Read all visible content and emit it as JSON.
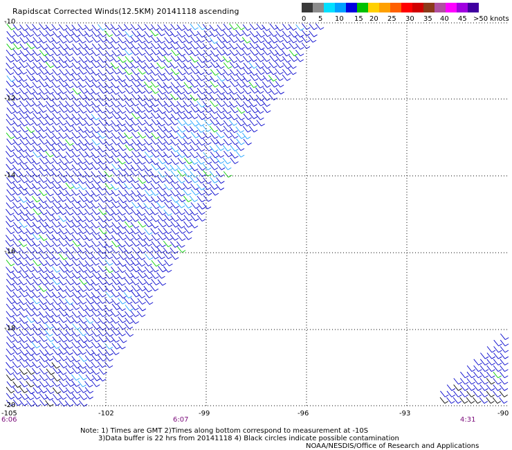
{
  "title": "Rapidscat Corrected Winds(12.5KM) 20141118 ascending",
  "colorbar": {
    "labels": [
      "0",
      "5",
      "10",
      "15",
      "20",
      "25",
      "30",
      "35",
      "40",
      "45",
      ">50 knots"
    ],
    "colors": [
      "#3a3a3a",
      "#8c8c8c",
      "#00e0ff",
      "#00a0ff",
      "#0000e0",
      "#00c000",
      "#ffd000",
      "#ffa000",
      "#ff6000",
      "#ff0000",
      "#d00000",
      "#8b3a1a",
      "#b050a0",
      "#ff00ff",
      "#a000e0",
      "#4000a0"
    ]
  },
  "map": {
    "lon_labels": [
      "-105",
      "-102",
      "-99",
      "-96",
      "-93",
      "-90"
    ],
    "lat_labels": [
      "-10",
      "-12",
      "-14",
      "-16",
      "-18",
      "-20"
    ],
    "time_labels": [
      "6:06",
      "6:07",
      "4:31"
    ],
    "colors": {
      "grid": "#000000",
      "barb_default": "#0000cc",
      "barb_light": "#1aa0ff",
      "barb_green": "#00cc00",
      "barb_black": "#000000",
      "time_label": "#7a0a7a"
    }
  },
  "notes": {
    "line1": "Note: 1) Times are GMT 2)Times along bottom correspond to measurement at -10S",
    "line2": "3)Data buffer is 22 hrs from 20141118 4) Black circles indicate possible contamination",
    "credit": "NOAA/NESDIS/Office of Research and Applications"
  }
}
